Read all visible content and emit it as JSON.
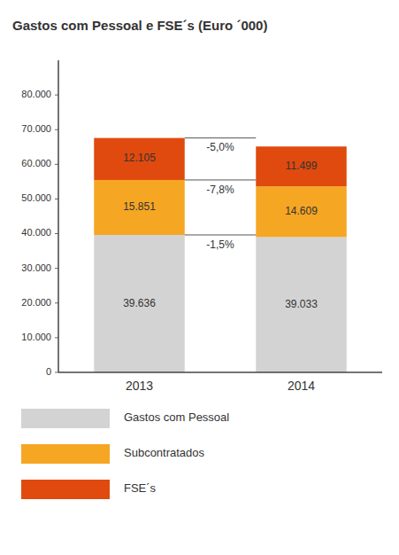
{
  "chart_data": {
    "type": "bar",
    "stacked": true,
    "title": "Gastos com Pessoal e FSE´s (Euro ´000)",
    "categories": [
      "2013",
      "2014"
    ],
    "series": [
      {
        "name": "Gastos com Pessoal",
        "color": "#d3d3d3",
        "values": [
          39636,
          39033
        ],
        "value_labels": [
          "39.636",
          "39.033"
        ]
      },
      {
        "name": "Subcontratados",
        "color": "#f5a623",
        "values": [
          15851,
          14609
        ],
        "value_labels": [
          "15.851",
          "14.609"
        ]
      },
      {
        "name": "FSE´s",
        "color": "#e04a0e",
        "values": [
          12105,
          11499
        ],
        "value_labels": [
          "12.105",
          "11.499"
        ]
      }
    ],
    "data_labels": true,
    "annotations": [
      "-1,5%",
      "-7,8%",
      "-5,0%"
    ],
    "ylim": [
      0,
      90000
    ],
    "yticks": [
      0,
      {
        "value": 10000,
        "label": "10.000"
      },
      {
        "value": 20000,
        "label": "20.000"
      },
      {
        "value": 30000,
        "label": "30.000"
      },
      {
        "value": 40000,
        "label": "40.000"
      },
      {
        "value": 50000,
        "label": "50.000"
      },
      {
        "value": 60000,
        "label": "60.000"
      },
      {
        "value": 70000,
        "label": "70.000"
      },
      {
        "value": 80000,
        "label": "80.000"
      }
    ],
    "legend": "bottom"
  }
}
